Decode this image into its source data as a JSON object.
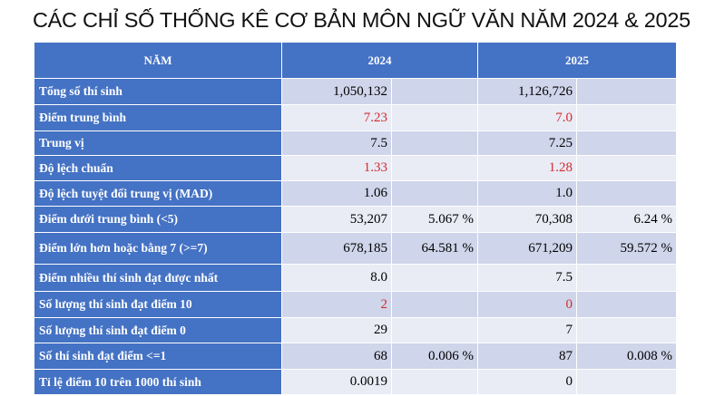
{
  "title": "CÁC CHỈ SỐ THỐNG KÊ CƠ BẢN MÔN NGỮ VĂN NĂM 2024 & 2025",
  "header": {
    "col_label": "NĂM",
    "year1": "2024",
    "year2": "2025"
  },
  "colors": {
    "header_blue": "#4472c4",
    "row_dark": "#cfd5ea",
    "row_light": "#e9ebf5",
    "highlight_red": "#d42b2b"
  },
  "rows": [
    {
      "label": "Tổng số thí sinh",
      "v2024": "1,050,132",
      "p2024": "",
      "v2025": "1,126,726",
      "p2025": ""
    },
    {
      "label": "Điểm trung bình",
      "v2024": "7.23",
      "p2024": "",
      "v2025": "7.0",
      "p2025": ""
    },
    {
      "label": "Trung vị",
      "v2024": "7.5",
      "p2024": "",
      "v2025": "7.25",
      "p2025": ""
    },
    {
      "label": "Độ lệch chuẩn",
      "v2024": "1.33",
      "p2024": "",
      "v2025": "1.28",
      "p2025": ""
    },
    {
      "label": "Độ lệch tuyệt đối trung vị (MAD)",
      "v2024": "1.06",
      "p2024": "",
      "v2025": "1.0",
      "p2025": ""
    },
    {
      "label": "Điểm dưới trung bình (<5)",
      "v2024": "53,207",
      "p2024": "5.067 %",
      "v2025": "70,308",
      "p2025": "6.24 %"
    },
    {
      "label": "Điểm lớn hơn hoặc bằng 7 (>=7)",
      "v2024": "678,185",
      "p2024": "64.581 %",
      "v2025": "671,209",
      "p2025": "59.572 %"
    },
    {
      "label": "Điểm nhiều thí sinh đạt được nhất",
      "v2024": "8.0",
      "p2024": "",
      "v2025": "7.5",
      "p2025": ""
    },
    {
      "label": "Số lượng thí sinh đạt điểm 10",
      "v2024": "2",
      "p2024": "",
      "v2025": "0",
      "p2025": ""
    },
    {
      "label": "Số lượng thí sinh đạt điểm 0",
      "v2024": "29",
      "p2024": "",
      "v2025": "7",
      "p2025": ""
    },
    {
      "label": "Số thí sinh đạt điểm <=1",
      "v2024": "68",
      "p2024": "0.006 %",
      "v2025": "87",
      "p2025": "0.008 %"
    },
    {
      "label": "Tỉ lệ điểm 10 trên 1000 thí sinh",
      "v2024": "0.0019",
      "p2024": "",
      "v2025": "0",
      "p2025": ""
    }
  ]
}
